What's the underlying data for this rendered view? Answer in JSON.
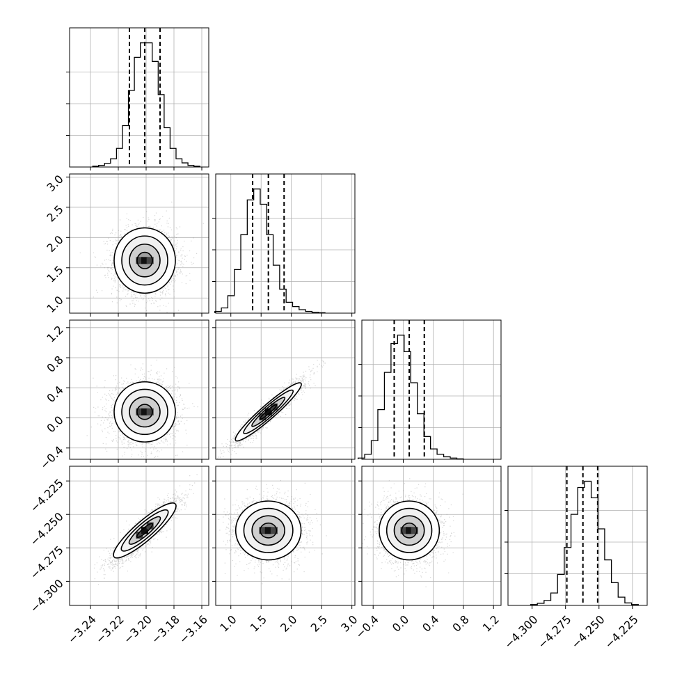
{
  "chart_data": {
    "type": "corner",
    "title": "",
    "grid": true,
    "parameters": [
      {
        "axis_label": "",
        "median": -3.201,
        "quantiles": [
          -3.212,
          -3.201,
          -3.19
        ],
        "range": [
          -3.255,
          -3.155
        ],
        "ticks": [
          -3.24,
          -3.22,
          -3.2,
          -3.18,
          -3.16
        ],
        "tick_labels": [
          "−3.24",
          "−3.22",
          "−3.20",
          "−3.18",
          "−3.16"
        ],
        "sigma": 0.011
      },
      {
        "axis_label": "",
        "median": 1.62,
        "quantiles": [
          1.36,
          1.62,
          1.88
        ],
        "range": [
          0.75,
          3.05
        ],
        "ticks": [
          1.0,
          1.5,
          2.0,
          2.5,
          3.0
        ],
        "tick_labels": [
          "1.0",
          "1.5",
          "2.0",
          "2.5",
          "3.0"
        ],
        "sigma": 0.27
      },
      {
        "axis_label": "",
        "median": 0.08,
        "quantiles": [
          -0.12,
          0.08,
          0.28
        ],
        "range": [
          -0.55,
          1.3
        ],
        "ticks": [
          -0.4,
          0.0,
          0.4,
          0.8,
          1.2
        ],
        "tick_labels": [
          "−0.4",
          "0.0",
          "0.4",
          "0.8",
          "1.2"
        ],
        "sigma": 0.2
      },
      {
        "axis_label": "",
        "median": -4.262,
        "quantiles": [
          -4.274,
          -4.262,
          -4.251
        ],
        "range": [
          -4.318,
          -4.214
        ],
        "ticks": [
          -4.3,
          -4.275,
          -4.25,
          -4.225
        ],
        "tick_labels": [
          "−4.300",
          "−4.275",
          "−4.250",
          "−4.225"
        ],
        "sigma": 0.011
      }
    ],
    "histograms": [
      {
        "parameter": 0,
        "bin_counts": [
          2,
          4,
          9,
          20,
          45,
          100,
          185,
          265,
          300,
          300,
          255,
          175,
          95,
          45,
          20,
          10,
          4,
          2
        ]
      },
      {
        "parameter": 1,
        "bin_counts": [
          4,
          12,
          40,
          100,
          180,
          260,
          285,
          250,
          180,
          110,
          55,
          25,
          15,
          8,
          4,
          2,
          1
        ]
      },
      {
        "parameter": 2,
        "bin_counts": [
          3,
          12,
          45,
          120,
          210,
          280,
          300,
          260,
          185,
          110,
          55,
          25,
          12,
          6,
          3,
          1
        ]
      },
      {
        "parameter": 3,
        "bin_counts": [
          2,
          5,
          12,
          30,
          75,
          140,
          220,
          285,
          300,
          260,
          185,
          110,
          55,
          20,
          6,
          2
        ]
      }
    ],
    "panels_2d": [
      {
        "x": 0,
        "y": 1,
        "correlation": 0.0
      },
      {
        "x": 0,
        "y": 2,
        "correlation": 0.0
      },
      {
        "x": 1,
        "y": 2,
        "correlation": 0.95
      },
      {
        "x": 0,
        "y": 3,
        "correlation": 0.9
      },
      {
        "x": 1,
        "y": 3,
        "correlation": 0.0
      },
      {
        "x": 2,
        "y": 3,
        "correlation": 0.0
      }
    ],
    "contour_levels_sigma": [
      0.5,
      1.0,
      1.5,
      2.0
    ]
  }
}
